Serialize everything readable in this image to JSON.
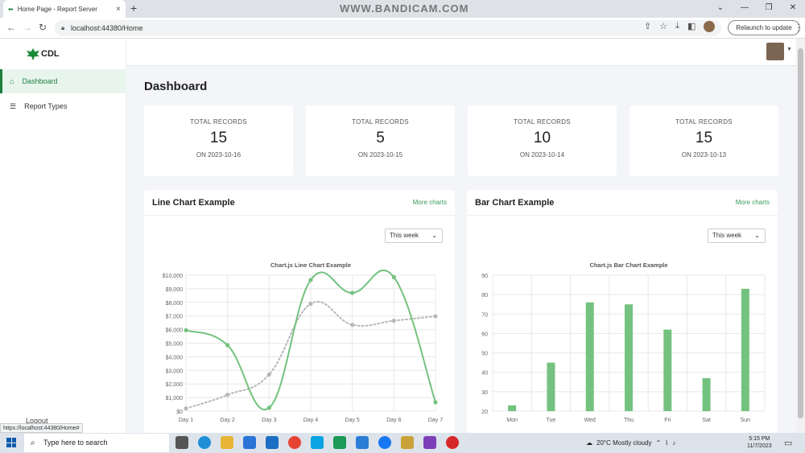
{
  "browser": {
    "tab_title": "Home Page - Report Server",
    "tab_close": "×",
    "new_tab": "+",
    "watermark": "WWW.BANDICAM.COM",
    "url": "localhost:44380/Home",
    "relaunch": "Relaunch to update",
    "status_url": "https://localhost:44380/Home#"
  },
  "sidebar": {
    "logo": "CDL",
    "items": [
      {
        "label": "Dashboard",
        "icon": "home-icon",
        "active": true
      },
      {
        "label": "Report Types",
        "icon": "list-icon",
        "active": false
      }
    ],
    "logout": "Logout"
  },
  "page": {
    "title": "Dashboard",
    "cards": [
      {
        "label": "TOTAL RECORDS",
        "value": "15",
        "date": "ON 2023-10-16"
      },
      {
        "label": "TOTAL RECORDS",
        "value": "5",
        "date": "ON 2023-10-15"
      },
      {
        "label": "TOTAL RECORDS",
        "value": "10",
        "date": "ON 2023-10-14"
      },
      {
        "label": "TOTAL RECORDS",
        "value": "15",
        "date": "ON 2023-10-13"
      }
    ],
    "line_panel": {
      "title": "Line Chart Example",
      "more": "More charts",
      "select": "This week"
    },
    "bar_panel": {
      "title": "Bar Chart Example",
      "more": "More charts",
      "select": "This week"
    }
  },
  "taskbar": {
    "search_placeholder": "Type here to search",
    "weather": "20°C  Mostly cloudy",
    "time": "5:15 PM",
    "date": "11/7/2023"
  },
  "colors": {
    "accent": "#3a9a5a",
    "line_series": "#74c27f",
    "dotted_series": "#b8b8b8",
    "bar": "#74c27f"
  },
  "chart_data": [
    {
      "type": "line",
      "title": "Chart.js Line Chart Example",
      "categories": [
        "Day 1",
        "Day 2",
        "Day 3",
        "Day 4",
        "Day 5",
        "Day 6",
        "Day 7"
      ],
      "y_ticks": [
        "$0",
        "$1,000",
        "$2,000",
        "$3,000",
        "$4,000",
        "$5,000",
        "$6,000",
        "$7,000",
        "$8,000",
        "$9,000",
        "$10,000"
      ],
      "ylim": [
        0,
        10000
      ],
      "grid": true,
      "series": [
        {
          "values": [
            5950,
            4850,
            250,
            9650,
            8700,
            9850,
            650
          ],
          "style": "solid",
          "color": "#74c27f"
        },
        {
          "values": [
            200,
            1200,
            2700,
            7900,
            6350,
            6650,
            6980
          ],
          "style": "dotted",
          "color": "#b8b8b8"
        }
      ]
    },
    {
      "type": "bar",
      "title": "Chart.js Bar Chart Example",
      "categories": [
        "Mon",
        "Tue",
        "Wed",
        "Thu",
        "Fri",
        "Sat",
        "Sun"
      ],
      "values": [
        23,
        45,
        76,
        75,
        62,
        37,
        83
      ],
      "y_ticks": [
        "20",
        "30",
        "40",
        "50",
        "60",
        "70",
        "80",
        "90"
      ],
      "ylim": [
        20,
        90
      ],
      "grid": true,
      "color": "#74c27f"
    }
  ]
}
